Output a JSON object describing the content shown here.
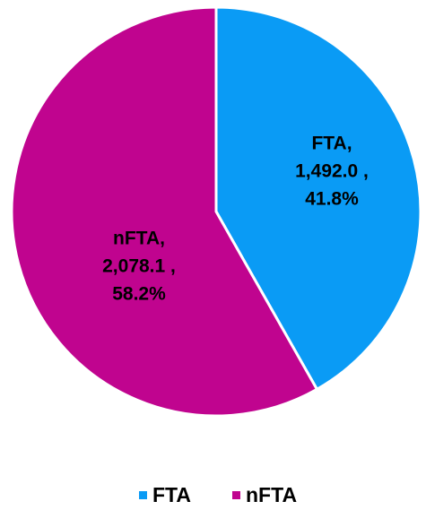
{
  "chart_data": {
    "type": "pie",
    "categories": [
      "FTA",
      "nFTA"
    ],
    "category_labels": [
      "FTA,",
      "nFTA,"
    ],
    "values": [
      1492.0,
      2078.1
    ],
    "value_labels": [
      "1,492.0 ,",
      "2,078.1 ,"
    ],
    "percents": [
      41.8,
      58.2
    ],
    "percent_labels": [
      "41.8%",
      "58.2%"
    ],
    "colors": [
      "#0a9bf5",
      "#c0048f"
    ],
    "legend": "bottom"
  }
}
